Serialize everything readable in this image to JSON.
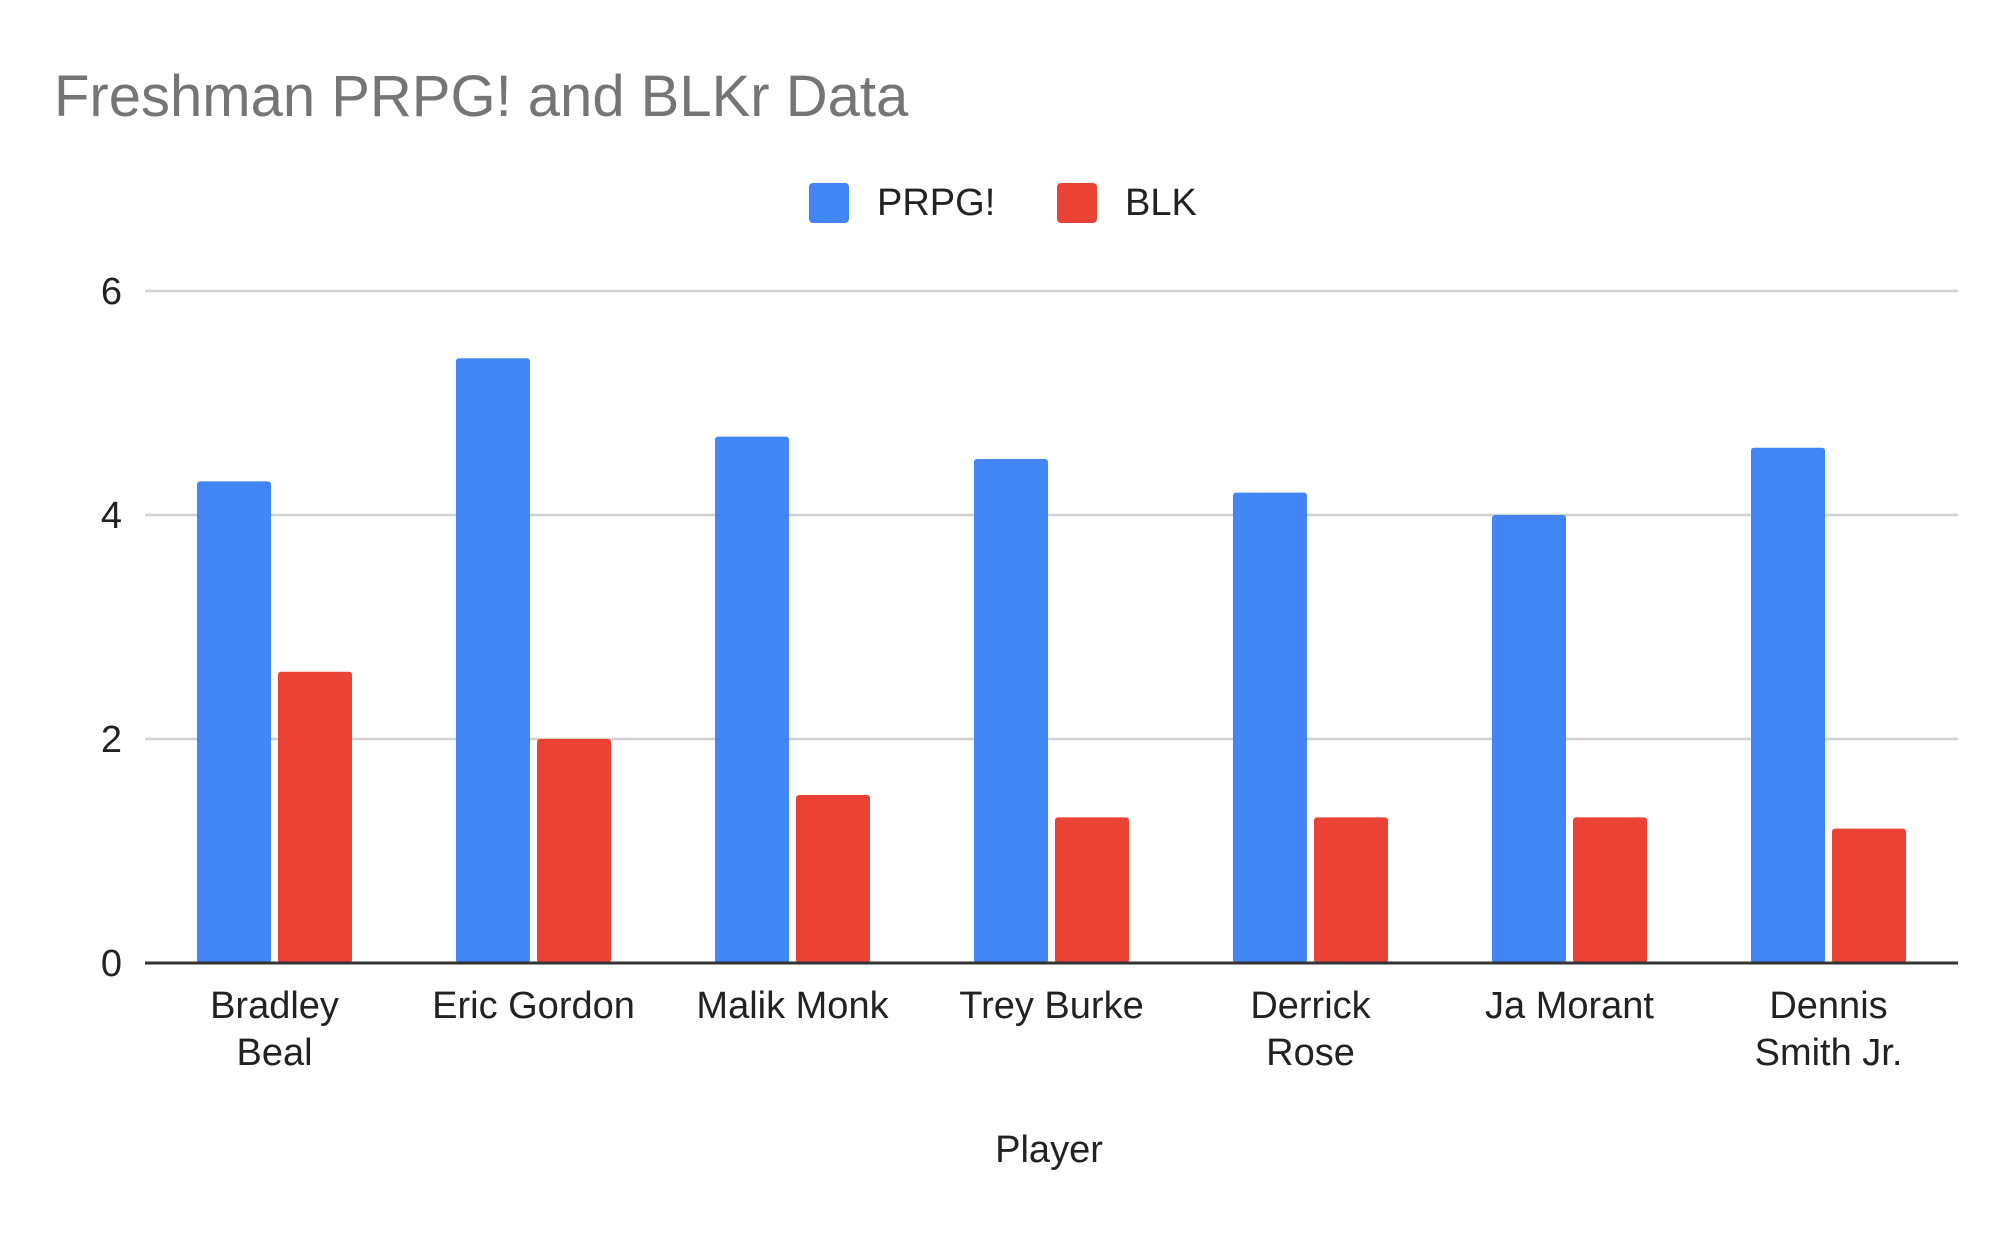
{
  "chart_data": {
    "type": "bar",
    "title": "Freshman PRPG! and BLKr Data",
    "xlabel": "Player",
    "ylabel": "",
    "ylim": [
      0,
      6
    ],
    "yticks": [
      "0",
      "2",
      "4",
      "6"
    ],
    "grid": true,
    "legend_position": "top-center",
    "categories": [
      [
        "Bradley",
        "Beal"
      ],
      [
        "Eric Gordon"
      ],
      [
        "Malik Monk"
      ],
      [
        "Trey Burke"
      ],
      [
        "Derrick",
        "Rose"
      ],
      [
        "Ja Morant"
      ],
      [
        "Dennis",
        "Smith Jr."
      ]
    ],
    "series": [
      {
        "name": "PRPG!",
        "color": "#4285f4",
        "values": [
          4.3,
          5.4,
          4.7,
          4.5,
          4.2,
          4.0,
          4.6
        ]
      },
      {
        "name": "BLK",
        "color": "#ea4335",
        "values": [
          2.6,
          2.0,
          1.5,
          1.3,
          1.3,
          1.3,
          1.2
        ]
      }
    ]
  }
}
